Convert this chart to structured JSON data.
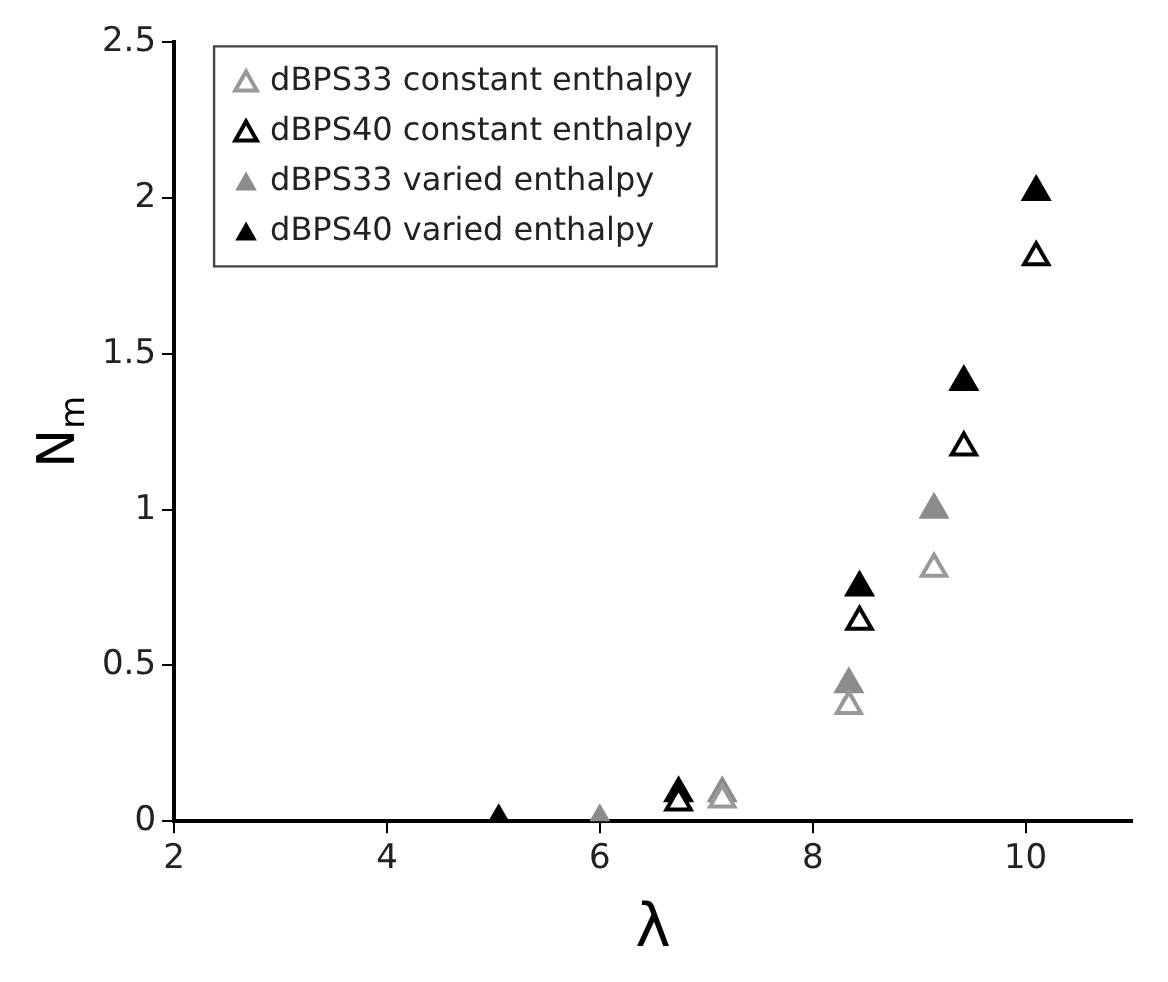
{
  "chart_data": {
    "type": "scatter",
    "xlabel": "λ",
    "ylabel": "N$_{m}$",
    "legend": "top left",
    "grid": false,
    "xlim": [
      2,
      11
    ],
    "xticks": [
      2,
      4,
      6,
      8,
      10
    ],
    "ylim": [
      0,
      2.5
    ],
    "yticks": [
      0,
      0.5,
      1,
      1.5,
      2,
      2.5
    ],
    "series": [
      {
        "name": "dBPS33 constant enthalpy",
        "color": "#999999",
        "marker": "triangle-open",
        "x": [
          7.15,
          8.34,
          9.14
        ],
        "values": [
          0.07,
          0.37,
          0.81
        ]
      },
      {
        "name": "dBPS40 constant enthalpy",
        "color": "#000000",
        "marker": "triangle-open",
        "x": [
          6.74,
          8.44,
          9.42,
          10.1
        ],
        "values": [
          0.06,
          0.64,
          1.2,
          1.81
        ]
      },
      {
        "name": "dBPS33 varied enthalpy",
        "color": "#8c8c8c",
        "marker": "triangle",
        "x": [
          6,
          7.15,
          8.34,
          9.14
        ],
        "values": [
          0,
          0.09,
          0.44,
          1.0
        ]
      },
      {
        "name": "dBPS40 varied enthalpy",
        "color": "#000000",
        "marker": "triangle",
        "x": [
          5.05,
          6.74,
          8.44,
          9.42,
          10.1
        ],
        "values": [
          0,
          0.09,
          0.75,
          1.41,
          2.02
        ]
      }
    ]
  }
}
